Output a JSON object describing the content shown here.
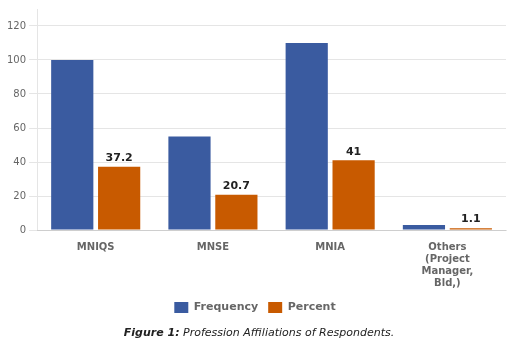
{
  "chart_data": {
    "type": "bar",
    "categories": [
      "MNIQS",
      "MNSE",
      "MNIA",
      "Others\n(Project\nManager,\nBld,)"
    ],
    "series": [
      {
        "name": "Frequency",
        "color": "#3A5BA0",
        "values": [
          100,
          55,
          110,
          3
        ]
      },
      {
        "name": "Percent",
        "color": "#C85A00",
        "values": [
          37.2,
          20.7,
          41,
          1.1
        ],
        "data_labels": true
      }
    ],
    "ylim": [
      0,
      130
    ],
    "yticks": [
      0,
      20,
      40,
      60,
      80,
      100,
      120
    ],
    "grid": true,
    "legend": "bottom",
    "annotations": [
      "Figure 1:",
      "Profession Affiliations of Respondents."
    ]
  }
}
